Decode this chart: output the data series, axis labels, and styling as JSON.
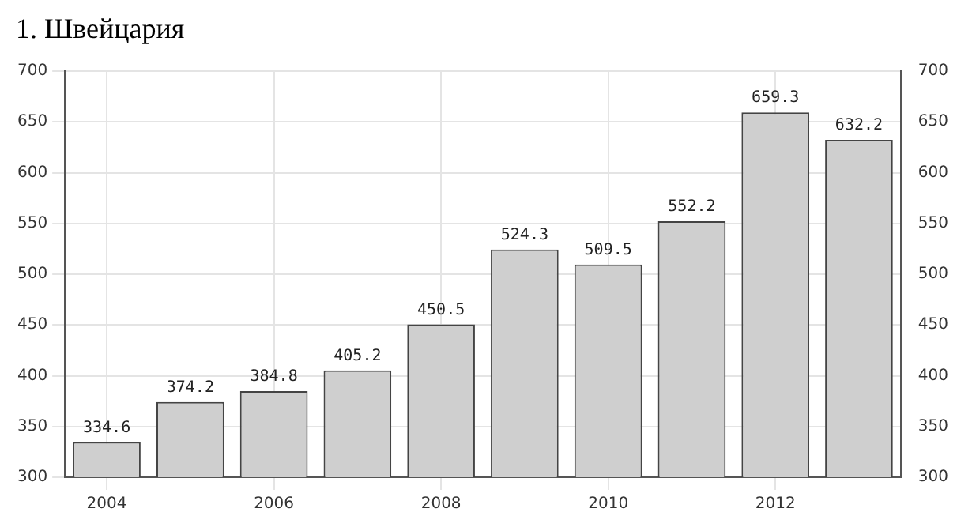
{
  "chart_data": {
    "type": "bar",
    "title": "1. Швейцария",
    "categories": [
      "2004",
      null,
      "2006",
      null,
      "2008",
      null,
      "2010",
      null,
      "2012",
      null
    ],
    "values": [
      334.6,
      374.2,
      384.8,
      405.2,
      450.5,
      524.3,
      509.5,
      552.2,
      659.3,
      632.2
    ],
    "color": "#cfcfcf",
    "ylim": [
      300,
      700
    ],
    "yticks": [
      300,
      350,
      400,
      450,
      500,
      550,
      600,
      650,
      700
    ],
    "y2lim": [
      300,
      700
    ],
    "y2ticks": [
      300,
      350,
      400,
      450,
      500,
      550,
      600,
      650,
      700
    ],
    "grid": true,
    "data_labels": true
  }
}
